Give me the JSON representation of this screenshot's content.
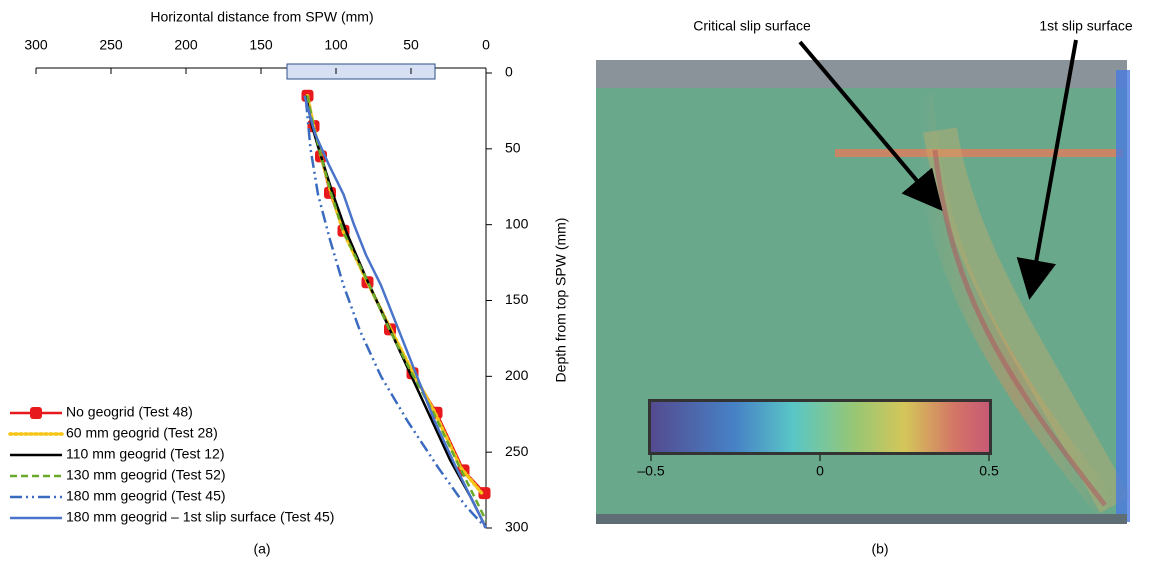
{
  "chart_data": [
    {
      "type": "line",
      "xlabel": "Horizontal distance from SPW (mm)",
      "ylabel": "Depth from top SPW (mm)",
      "caption": "(a)",
      "xlim": [
        300,
        0
      ],
      "xticks": [
        300,
        250,
        200,
        150,
        100,
        50,
        0
      ],
      "ylim": [
        0,
        300
      ],
      "yticks": [
        0,
        50,
        100,
        150,
        200,
        250,
        300
      ],
      "invert_y": true,
      "legend": "lower left",
      "series": [
        {
          "name": "No geogrid (Test 48)",
          "color": "#e8191c",
          "linestyle": "solid",
          "marker": "square",
          "x": [
            119,
            115,
            110,
            104,
            95,
            79,
            64,
            49,
            33,
            15,
            1
          ],
          "values": [
            15,
            35,
            55,
            79,
            104,
            138,
            169,
            198,
            224,
            262,
            277
          ]
        },
        {
          "name": "60 mm geogrid (Test 28)",
          "color": "#f5c518",
          "linestyle": "dotted",
          "x": [
            119,
            115,
            110,
            103,
            95,
            79,
            64,
            49,
            34,
            17,
            2
          ],
          "values": [
            15,
            35,
            55,
            80,
            105,
            138,
            168,
            197,
            224,
            260,
            278
          ]
        },
        {
          "name": "110 mm geogrid (Test 12)",
          "color": "#000000",
          "linestyle": "solid",
          "x": [
            120,
            116,
            110,
            102,
            93,
            80,
            66,
            52,
            38,
            24,
            10,
            0
          ],
          "values": [
            15,
            35,
            55,
            80,
            105,
            135,
            165,
            195,
            225,
            255,
            280,
            300
          ]
        },
        {
          "name": "130 mm geogrid (Test 52)",
          "color": "#6aaa2a",
          "linestyle": "dashed",
          "x": [
            119,
            115,
            110,
            103,
            95,
            80,
            65,
            50,
            35,
            20,
            5,
            0
          ],
          "values": [
            15,
            35,
            55,
            80,
            105,
            135,
            168,
            197,
            224,
            255,
            285,
            295
          ]
        },
        {
          "name": "180 mm geogrid (Test 45)",
          "color": "#3a6bbf",
          "linestyle": "dashdot",
          "x": [
            120,
            117,
            112,
            104,
            95,
            84,
            70,
            52,
            32,
            14,
            0
          ],
          "values": [
            18,
            50,
            80,
            110,
            140,
            170,
            200,
            230,
            260,
            285,
            300
          ]
        },
        {
          "name": "180 mm geogrid – 1st slip surface (Test 45)",
          "color": "#4a74c9",
          "linestyle": "solid",
          "x": [
            121,
            114,
            105,
            95,
            88,
            80,
            70,
            58,
            46,
            34,
            20,
            5,
            0
          ],
          "values": [
            15,
            40,
            60,
            80,
            100,
            120,
            140,
            170,
            200,
            230,
            260,
            290,
            300
          ]
        }
      ]
    },
    {
      "type": "image",
      "caption": "(b)",
      "annotations": [
        "Critical slip surface",
        "1st slip surface"
      ],
      "colorbar": {
        "clim": [
          -0.5,
          0.5
        ],
        "ticks": [
          {
            "value": -0.5,
            "label": "–0.5"
          },
          0,
          0.5
        ]
      }
    }
  ]
}
